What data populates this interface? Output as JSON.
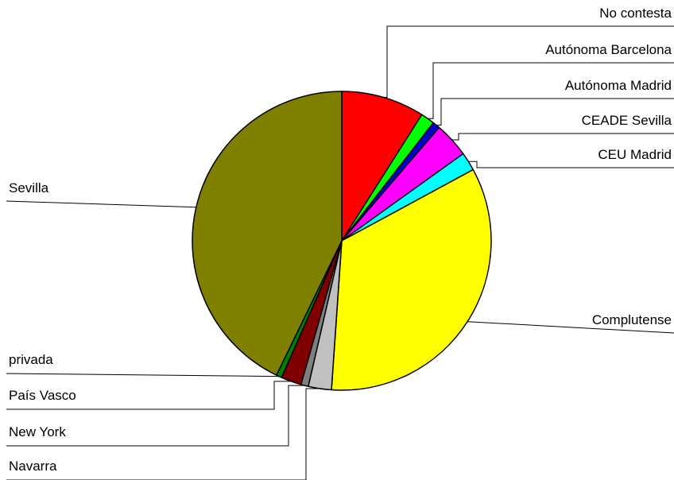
{
  "chart_data": {
    "type": "pie",
    "title": "",
    "legend": "none",
    "categories": [
      "No contesta",
      "Autónoma Barcelona",
      "Autónoma Madrid",
      "CEADE Sevilla",
      "CEU Madrid",
      "Complutense",
      "Navarra",
      "New York",
      "País Vasco",
      "privada",
      "Sevilla"
    ],
    "values": [
      9.0,
      1.5,
      0.8,
      3.8,
      2.0,
      34.0,
      2.5,
      0.8,
      2.2,
      0.6,
      42.8
    ],
    "colors": [
      "#ff0000",
      "#00ff00",
      "#0000cc",
      "#ff00ff",
      "#00ffff",
      "#ffff00",
      "#c0c0c0",
      "#808080",
      "#800000",
      "#008000",
      "#808000"
    ]
  }
}
